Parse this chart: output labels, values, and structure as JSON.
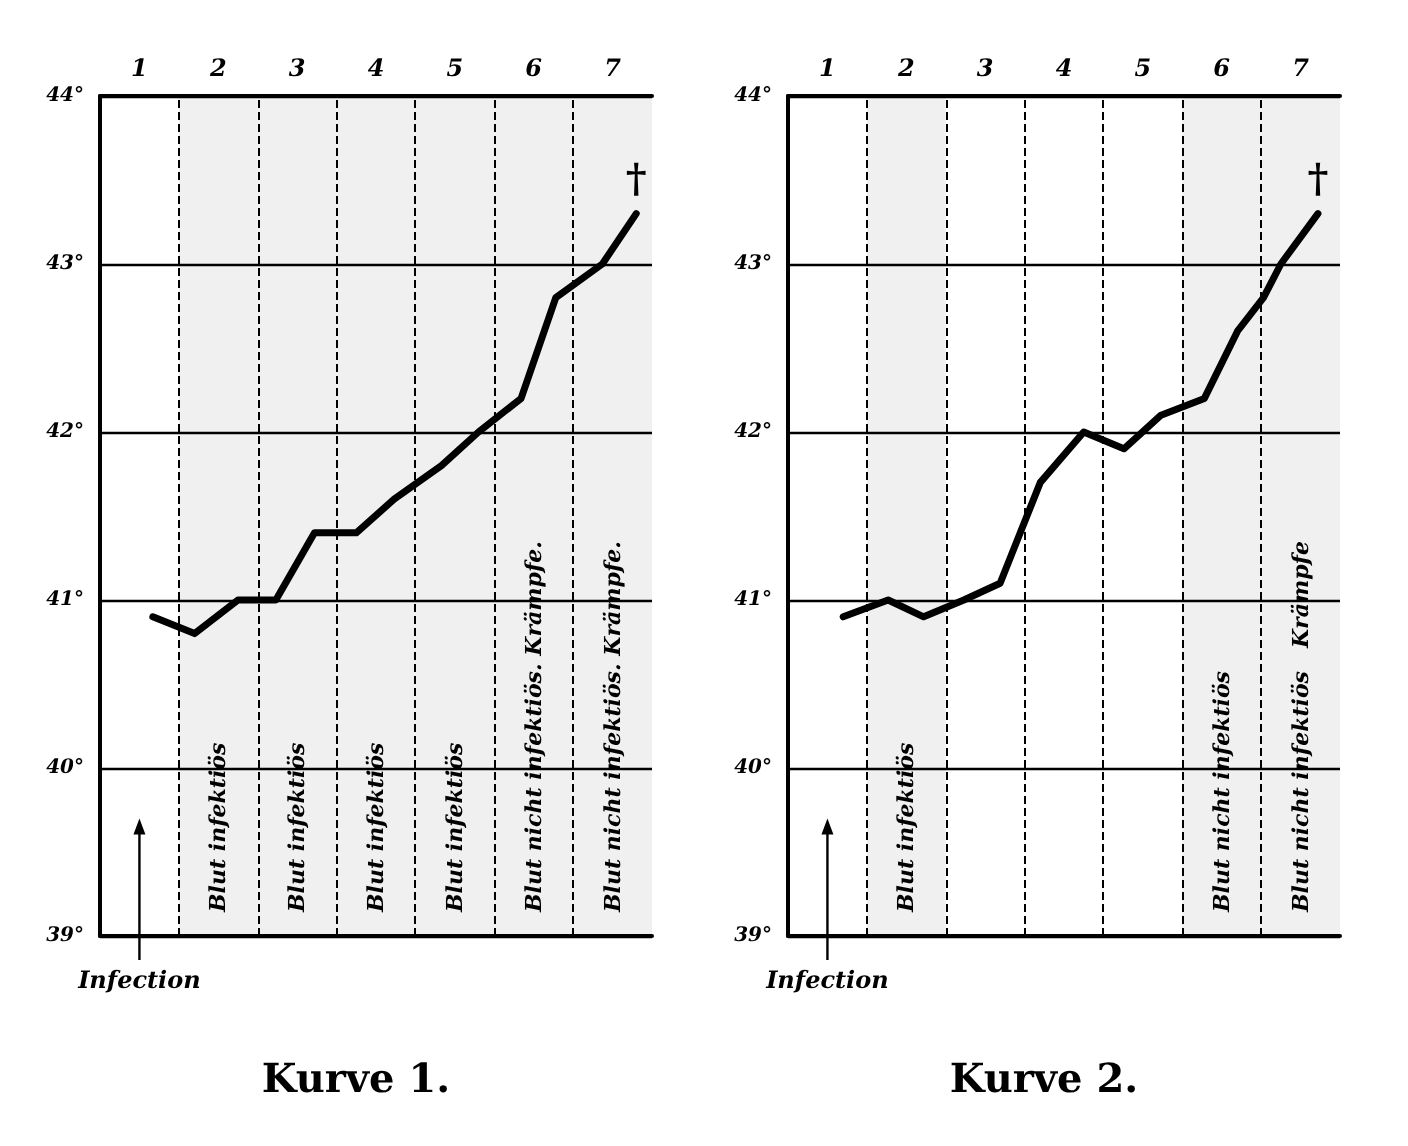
{
  "chart_data": [
    {
      "type": "line",
      "title": "Kurve 1.",
      "xlim": [
        0,
        7
      ],
      "xticks": [
        {
          "value": 0.5,
          "label": "1"
        },
        {
          "value": 1.5,
          "label": "2"
        },
        {
          "value": 2.5,
          "label": "3"
        },
        {
          "value": 3.5,
          "label": "4"
        },
        {
          "value": 4.5,
          "label": "5"
        },
        {
          "value": 5.5,
          "label": "6"
        },
        {
          "value": 6.5,
          "label": "7"
        }
      ],
      "ylim": [
        39,
        44
      ],
      "yticks": [
        {
          "value": 39,
          "label": "39°"
        },
        {
          "value": 40,
          "label": "40°"
        },
        {
          "value": 41,
          "label": "41°"
        },
        {
          "value": 42,
          "label": "42°"
        },
        {
          "value": 43,
          "label": "43°"
        },
        {
          "value": 44,
          "label": "44°"
        }
      ],
      "grid": "y",
      "marker": "none",
      "line_style": "solid",
      "ref_lines": [
        {
          "axis": "x",
          "value": 1,
          "line_style": "dashed"
        },
        {
          "axis": "x",
          "value": 2,
          "line_style": "dashed"
        },
        {
          "axis": "x",
          "value": 3,
          "line_style": "dashed"
        },
        {
          "axis": "x",
          "value": 4,
          "line_style": "dashed"
        },
        {
          "axis": "x",
          "value": 5,
          "line_style": "dashed"
        },
        {
          "axis": "x",
          "value": 6,
          "line_style": "dashed"
        }
      ],
      "series": [
        {
          "color": "#000000",
          "x": [
            0.67,
            1.2,
            1.75,
            2.23,
            2.72,
            3.25,
            3.73,
            4.33,
            4.8,
            5.34,
            5.78,
            6.37,
            6.8
          ],
          "values": [
            40.9,
            40.8,
            41.0,
            41.0,
            41.4,
            41.4,
            41.6,
            41.8,
            42.0,
            42.2,
            42.8,
            43.0,
            43.3
          ]
        }
      ],
      "bands": [
        {
          "axis": "x",
          "from": 1,
          "to": 2,
          "label": "Blut infektiös",
          "color": "#f0f0f0"
        },
        {
          "axis": "x",
          "from": 2,
          "to": 3,
          "label": "Blut infektiös",
          "color": "#f0f0f0"
        },
        {
          "axis": "x",
          "from": 3,
          "to": 4,
          "label": "Blut infektiös",
          "color": "#f0f0f0"
        },
        {
          "axis": "x",
          "from": 4,
          "to": 5,
          "label": "Blut infektiös",
          "color": "#f0f0f0"
        },
        {
          "axis": "x",
          "from": 5,
          "to": 6,
          "label": "Blut nicht infektiös. Krämpfe.",
          "color": "#f0f0f0"
        },
        {
          "axis": "x",
          "from": 6,
          "to": 7,
          "label": "Blut nicht infektiös. Krämpfe.",
          "color": "#f0f0f0"
        }
      ],
      "annotations": [
        "†",
        "Infection"
      ]
    },
    {
      "type": "line",
      "title": "Kurve 2.",
      "xlim": [
        0,
        7
      ],
      "xticks": [
        {
          "value": 0.5,
          "label": "1"
        },
        {
          "value": 1.5,
          "label": "2"
        },
        {
          "value": 2.5,
          "label": "3"
        },
        {
          "value": 3.5,
          "label": "4"
        },
        {
          "value": 4.5,
          "label": "5"
        },
        {
          "value": 5.5,
          "label": "6"
        },
        {
          "value": 6.5,
          "label": "7"
        }
      ],
      "ylim": [
        39,
        44
      ],
      "yticks": [
        {
          "value": 39,
          "label": "39°"
        },
        {
          "value": 40,
          "label": "40°"
        },
        {
          "value": 41,
          "label": "41°"
        },
        {
          "value": 42,
          "label": "42°"
        },
        {
          "value": 43,
          "label": "43°"
        },
        {
          "value": 44,
          "label": "44°"
        }
      ],
      "grid": "y",
      "marker": "none",
      "line_style": "solid",
      "ref_lines": [
        {
          "axis": "x",
          "value": 1,
          "line_style": "dashed"
        },
        {
          "axis": "x",
          "value": 2,
          "line_style": "dashed"
        },
        {
          "axis": "x",
          "value": 3,
          "line_style": "dashed"
        },
        {
          "axis": "x",
          "value": 4,
          "line_style": "dashed"
        },
        {
          "axis": "x",
          "value": 5,
          "line_style": "dashed"
        },
        {
          "axis": "x",
          "value": 6,
          "line_style": "dashed"
        }
      ],
      "series": [
        {
          "color": "#000000",
          "x": [
            0.7,
            1.27,
            1.72,
            2.23,
            2.69,
            3.2,
            3.75,
            4.26,
            4.73,
            5.28,
            5.7,
            6.03,
            6.25,
            6.72
          ],
          "values": [
            40.9,
            41.0,
            40.9,
            41.0,
            41.1,
            41.7,
            42.0,
            41.9,
            42.1,
            42.2,
            42.6,
            42.8,
            43.0,
            43.3
          ]
        }
      ],
      "bands": [
        {
          "axis": "x",
          "from": 1,
          "to": 2,
          "label": "Blut infektiös",
          "color": "#f0f0f0"
        },
        {
          "axis": "x",
          "from": 5,
          "to": 6,
          "label": "Blut nicht infektiös",
          "color": "#f0f0f0"
        },
        {
          "axis": "x",
          "from": 6,
          "to": 7,
          "label": "Blut nicht infektiös   Krämpfe",
          "color": "#f0f0f0"
        }
      ],
      "annotations": [
        "†",
        "Infection"
      ]
    }
  ]
}
